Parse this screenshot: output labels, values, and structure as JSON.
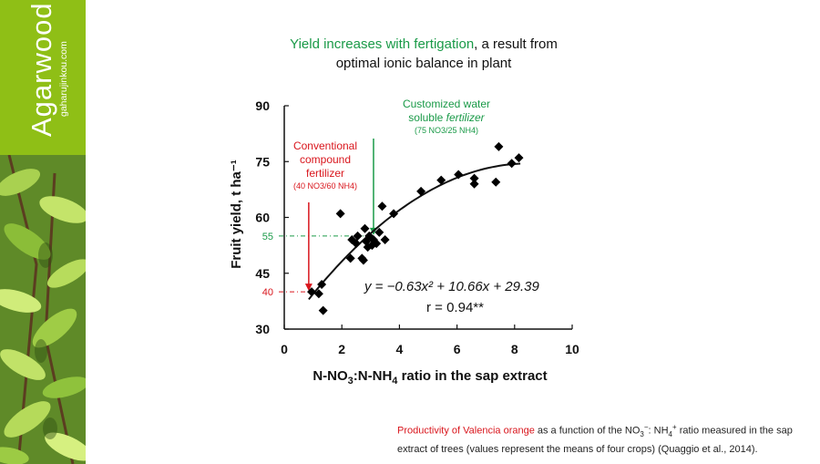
{
  "sidebar": {
    "brand_title": "Agarwood",
    "brand_url": "gaharujinkou.com",
    "accent_color": "#8fbf16"
  },
  "slide": {
    "title_highlight": "Yield increases with fertigation",
    "title_rest_line1": ", a result from",
    "title_line2": "optimal ionic balance in plant",
    "highlight_color": "#1a9a48"
  },
  "chart_data": {
    "type": "scatter",
    "xlabel_parts": [
      "N-NO",
      "3",
      ":N-NH",
      "4",
      " ratio in the sap extract"
    ],
    "ylabel": "Fruit yield, t ha⁻¹",
    "xlim": [
      0,
      10
    ],
    "ylim": [
      30,
      90
    ],
    "x_ticks": [
      0,
      2,
      4,
      6,
      8,
      10
    ],
    "y_ticks": [
      30,
      45,
      60,
      75,
      90
    ],
    "points": [
      [
        0.95,
        40
      ],
      [
        1.2,
        39.5
      ],
      [
        1.3,
        42
      ],
      [
        1.35,
        35
      ],
      [
        1.95,
        61
      ],
      [
        2.3,
        49
      ],
      [
        2.35,
        54
      ],
      [
        2.5,
        53
      ],
      [
        2.55,
        55
      ],
      [
        2.7,
        49
      ],
      [
        2.75,
        48.5
      ],
      [
        2.8,
        57
      ],
      [
        2.85,
        53.5
      ],
      [
        2.9,
        52
      ],
      [
        2.95,
        55
      ],
      [
        3.05,
        52.5
      ],
      [
        3.1,
        54
      ],
      [
        3.2,
        53
      ],
      [
        3.3,
        56
      ],
      [
        3.4,
        63
      ],
      [
        3.5,
        54
      ],
      [
        3.8,
        61
      ],
      [
        4.75,
        67
      ],
      [
        5.45,
        70
      ],
      [
        6.05,
        71.5
      ],
      [
        6.6,
        69
      ],
      [
        6.6,
        70.5
      ],
      [
        7.35,
        69.5
      ],
      [
        7.45,
        79
      ],
      [
        7.9,
        74.5
      ],
      [
        8.15,
        76
      ]
    ],
    "fit": {
      "a": -0.63,
      "b": 10.66,
      "c": 29.39,
      "x_range": [
        0.85,
        8.2
      ]
    },
    "equation": "y = −0.63x² + 10.66x + 29.39",
    "r_value": "r = 0.94**",
    "ref_lines": [
      {
        "y": 55,
        "x": 3.1,
        "label": "55",
        "color": "#1a9a48"
      },
      {
        "y": 40,
        "x": 0.85,
        "label": "40",
        "color": "#d9161d"
      }
    ],
    "annotations": {
      "conventional": {
        "lines": [
          "Conventional",
          "compound",
          "fertilizer"
        ],
        "sub": "(40 NO3/60 NH4)",
        "color": "#d9161d",
        "arrow_x": 0.85,
        "arrow_y": 40
      },
      "customized": {
        "line1": "Customized water",
        "line2_plain": "soluble ",
        "line2_italic": "fertilizer",
        "sub": "(75 NO3/25 NH4)",
        "color": "#1a9a48",
        "arrow_x": 3.1,
        "arrow_y": 55
      }
    }
  },
  "caption": {
    "highlight": "Productivity of Valencia orange",
    "part1": " as a function of the NO",
    "no3_sub": "3",
    "no3_sup": "−",
    "part2": ": NH",
    "nh4_sub": "4",
    "nh4_sup": "+",
    "part3": " ratio measured in the sap extract of trees (values represent the means of four crops) (Quaggio et al., 2014)."
  }
}
